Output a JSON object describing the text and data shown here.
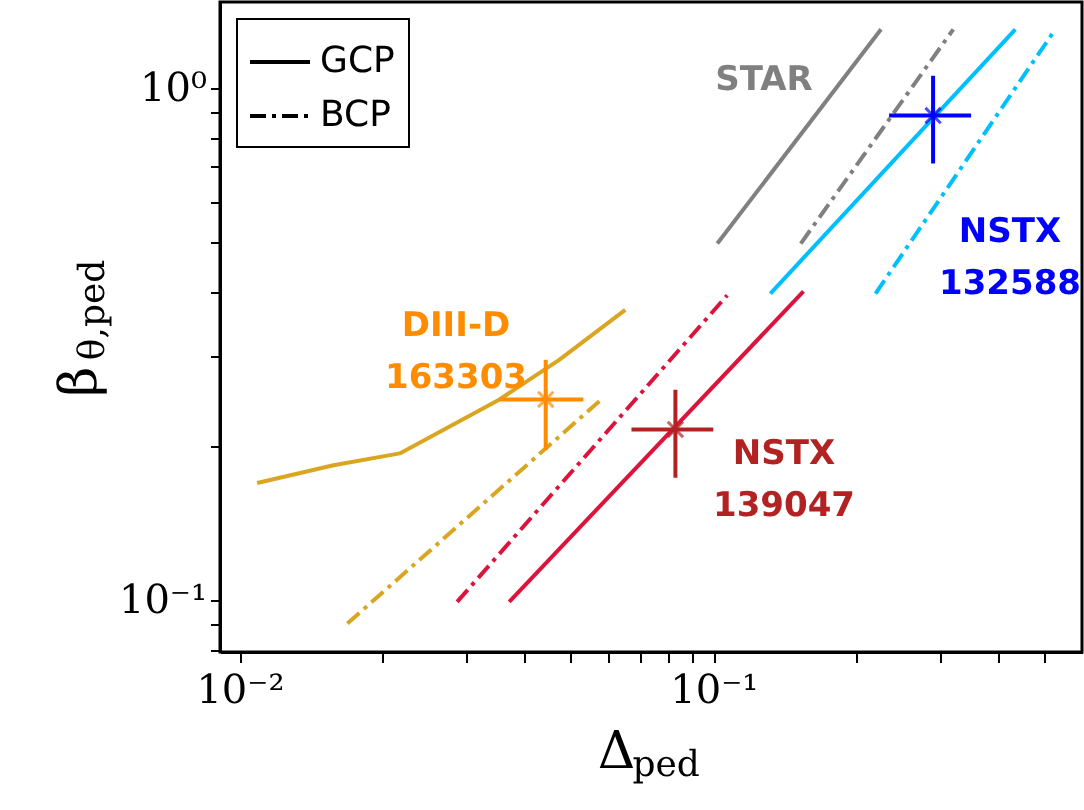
{
  "chart_data": {
    "type": "line",
    "xlabel": "Δ$_{ped}$",
    "ylabel": "β$_{θ,ped}$",
    "log": "xy",
    "grid": false,
    "legend": "top left",
    "xlim": [
      0.0091,
      0.6
    ],
    "ylim": [
      0.079,
      1.47
    ],
    "xticks": [
      {
        "value": 0.01,
        "label": "10⁻²"
      },
      {
        "value": 0.02,
        "label": null
      },
      {
        "value": 0.03,
        "label": null
      },
      {
        "value": 0.04,
        "label": null
      },
      {
        "value": 0.05,
        "label": null
      },
      {
        "value": 0.06,
        "label": null
      },
      {
        "value": 0.07,
        "label": null
      },
      {
        "value": 0.08,
        "label": null
      },
      {
        "value": 0.09,
        "label": null
      },
      {
        "value": 0.1,
        "label": "10⁻¹"
      },
      {
        "value": 0.2,
        "label": null
      },
      {
        "value": 0.3,
        "label": null
      },
      {
        "value": 0.4,
        "label": null
      },
      {
        "value": 0.5,
        "label": null
      }
    ],
    "yticks": [
      {
        "value": 0.08,
        "label": null
      },
      {
        "value": 0.09,
        "label": null
      },
      {
        "value": 0.1,
        "label": "10⁻¹"
      },
      {
        "value": 0.2,
        "label": null
      },
      {
        "value": 0.3,
        "label": null
      },
      {
        "value": 0.4,
        "label": null
      },
      {
        "value": 0.5,
        "label": null
      },
      {
        "value": 0.6,
        "label": null
      },
      {
        "value": 0.7,
        "label": null
      },
      {
        "value": 0.8,
        "label": null
      },
      {
        "value": 0.9,
        "label": null
      },
      {
        "value": 1,
        "label": "10⁰"
      }
    ],
    "series": [
      {
        "name": "GCP",
        "color": "#000000",
        "line_style": "solid"
      },
      {
        "name": "BCP",
        "color": "#000000",
        "line_style": "dashed"
      },
      {
        "color": "#808080",
        "line_style": "solid",
        "x": [
          0.102,
          0.226
        ],
        "values": [
          0.496,
          1.3
        ]
      },
      {
        "color": "#808080",
        "line_style": "dashed",
        "x": [
          0.153,
          0.321
        ],
        "values": [
          0.496,
          1.3
        ]
      },
      {
        "color": "#00bfff",
        "line_style": "solid",
        "x": [
          0.132,
          0.434
        ],
        "values": [
          0.396,
          1.3
        ]
      },
      {
        "color": "#00bfff",
        "line_style": "dashed",
        "x": [
          0.22,
          0.527
        ],
        "values": [
          0.396,
          1.3
        ]
      },
      {
        "color": "#dc143c",
        "line_style": "solid",
        "x": [
          0.0371,
          0.155
        ],
        "values": [
          0.099,
          0.4
        ]
      },
      {
        "color": "#dc143c",
        "line_style": "dashed",
        "x": [
          0.0288,
          0.107
        ],
        "values": [
          0.099,
          0.393
        ]
      },
      {
        "color": "#daa520",
        "line_style": "solid",
        "x": [
          0.0109,
          0.0158,
          0.0218,
          0.0354,
          0.0473,
          0.0652
        ],
        "values": [
          0.169,
          0.183,
          0.193,
          0.246,
          0.294,
          0.368
        ]
      },
      {
        "color": "#daa520",
        "line_style": "dashed",
        "x": [
          0.0169,
          0.0586
        ],
        "values": [
          0.0898,
          0.248
        ]
      },
      {
        "type": "scatter",
        "marker": "cross",
        "color": "#ff8c00",
        "x": [
          0.0443
        ],
        "values": [
          0.246
        ],
        "errors": [
          [
            0.196,
            0.294
          ]
        ],
        "xerrors": [
          [
            0.0354,
            0.0532
          ]
        ]
      },
      {
        "type": "scatter",
        "marker": "cross",
        "color": "#b22222",
        "x": [
          0.0832
        ],
        "values": [
          0.215
        ],
        "errors": [
          [
            0.173,
            0.257
          ]
        ],
        "xerrors": [
          [
            0.0672,
            0.1
          ]
        ]
      },
      {
        "type": "scatter",
        "marker": "cross",
        "color": "#0000ff",
        "x": [
          0.291
        ],
        "values": [
          0.882
        ],
        "errors": [
          [
            0.711,
            1.055
          ]
        ],
        "xerrors": [
          [
            0.235,
            0.35
          ]
        ]
      }
    ],
    "annotations": [
      "STAR",
      "NSTX\n132588",
      "DIII-D\n163303",
      "NSTX\n139047"
    ]
  }
}
